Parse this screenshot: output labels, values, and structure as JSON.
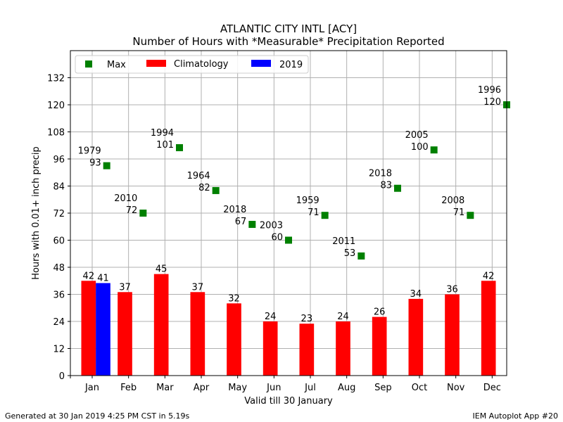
{
  "chart_data": {
    "type": "bar",
    "title": "ATLANTIC CITY INTL [ACY]",
    "subtitle": "Number of Hours with *Measurable* Precipitation Reported",
    "xlabel": "Valid till 30 January",
    "ylabel": "Hours with 0.01+ inch precip",
    "categories": [
      "Jan",
      "Feb",
      "Mar",
      "Apr",
      "May",
      "Jun",
      "Jul",
      "Aug",
      "Sep",
      "Oct",
      "Nov",
      "Dec"
    ],
    "ylim": [
      0,
      144
    ],
    "yticks": [
      0,
      12,
      24,
      36,
      48,
      60,
      72,
      84,
      96,
      108,
      120,
      132
    ],
    "grid": true,
    "legend_position": "top-left",
    "series": [
      {
        "name": "Max",
        "kind": "marker",
        "color": "#008000",
        "values": [
          93,
          72,
          101,
          82,
          67,
          60,
          71,
          53,
          83,
          100,
          71,
          120
        ],
        "years": [
          "1979",
          "2010",
          "1994",
          "1964",
          "2018",
          "2003",
          "1959",
          "2011",
          "2018",
          "2005",
          "2008",
          "1996"
        ]
      },
      {
        "name": "Climatology",
        "kind": "bar",
        "color": "#ff0000",
        "values": [
          42,
          37,
          45,
          37,
          32,
          24,
          23,
          24,
          26,
          34,
          36,
          42
        ]
      },
      {
        "name": "2019",
        "kind": "bar",
        "color": "#0000ff",
        "values": [
          41,
          null,
          null,
          null,
          null,
          null,
          null,
          null,
          null,
          null,
          null,
          null
        ]
      }
    ]
  },
  "footer": {
    "left": "Generated at 30 Jan 2019 4:25 PM CST in 5.19s",
    "right": "IEM Autoplot App #20"
  }
}
